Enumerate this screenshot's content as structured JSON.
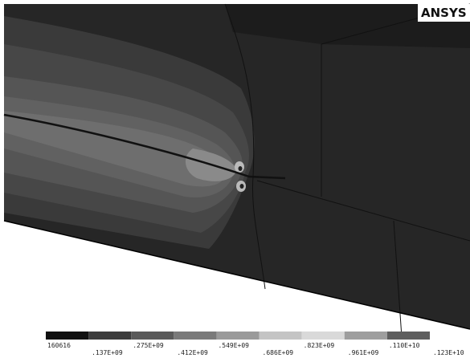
{
  "logo": "ANSYS",
  "legend": {
    "labels": [
      "160616",
      ".137E+09",
      ".275E+09",
      ".412E+09",
      ".549E+09",
      ".686E+09",
      ".823E+09",
      ".961E+09",
      ".110E+10",
      ".123E+10"
    ]
  }
}
